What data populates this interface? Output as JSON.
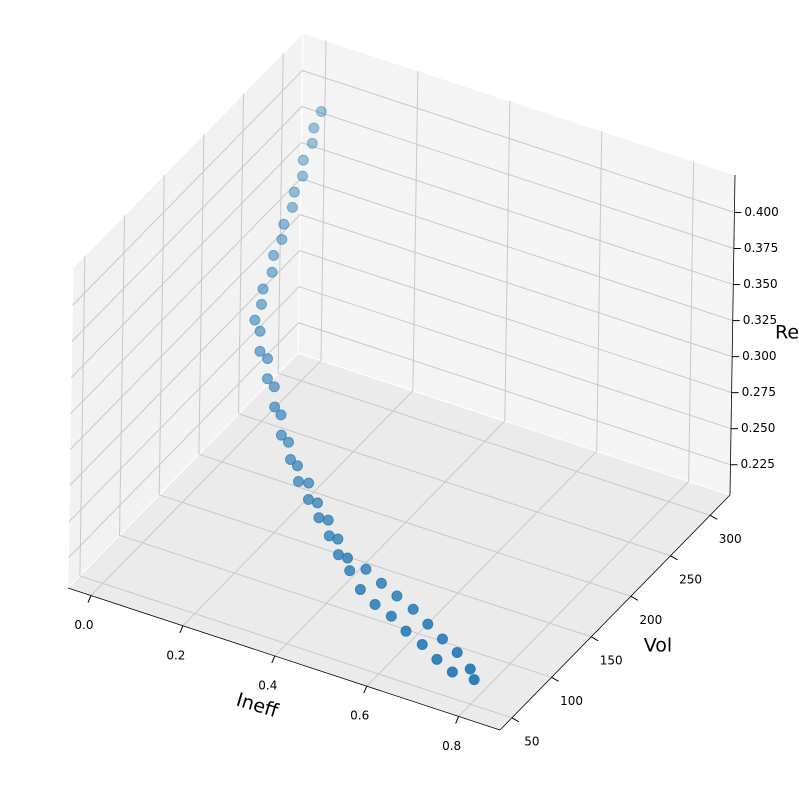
{
  "chart_data": {
    "type": "scatter3d",
    "xlabel": "Ineff",
    "ylabel": "Vol",
    "zlabel": "Ret",
    "color": "#1f77b4",
    "grid": true,
    "xlim": [
      -0.05,
      0.89
    ],
    "ylim": [
      35,
      325
    ],
    "zlim": [
      0.204,
      0.426
    ],
    "xticks": [
      {
        "value": 0,
        "label": "0.0"
      },
      0.2,
      0.4,
      0.6,
      0.8
    ],
    "yticks": [
      50,
      100,
      150,
      200,
      250,
      300
    ],
    "zticks": [
      0.225,
      {
        "value": 0.25,
        "label": "0.250"
      },
      0.275,
      {
        "value": 0.3,
        "label": "0.300"
      },
      0.325,
      {
        "value": 0.35,
        "label": "0.350"
      },
      0.375,
      {
        "value": 0.4,
        "label": "0.400"
      }
    ],
    "x": [
      0.07,
      0.073,
      0.077,
      0.08,
      0.084,
      0.087,
      0.09,
      0.094,
      0.097,
      0.1,
      0.104,
      0.107,
      0.111,
      0.114,
      0.129,
      0.143,
      0.158,
      0.172,
      0.187,
      0.202,
      0.216,
      0.231,
      0.245,
      0.26,
      0.277,
      0.295,
      0.312,
      0.329,
      0.347,
      0.364,
      0.381,
      0.399,
      0.416,
      0.433,
      0.451,
      0.468,
      0.488,
      0.507,
      0.527,
      0.546,
      0.566,
      0.585,
      0.605,
      0.624,
      0.644,
      0.663,
      0.683,
      0.702,
      0.722,
      0.741,
      0.761,
      0.78
    ],
    "y": [
      279,
      268,
      264,
      251,
      248,
      236,
      232,
      219,
      215,
      203,
      199,
      186,
      182,
      172,
      170,
      162,
      163,
      155,
      155,
      147,
      147,
      139,
      140,
      134,
      133,
      124,
      127,
      117,
      118,
      110,
      112,
      103,
      104,
      95,
      96,
      89,
      98,
      80,
      95,
      76,
      92,
      74,
      90,
      70,
      86,
      68,
      82,
      64,
      78,
      61,
      72,
      66
    ],
    "z": [
      0.41,
      0.405,
      0.397,
      0.393,
      0.384,
      0.38,
      0.372,
      0.368,
      0.36,
      0.356,
      0.347,
      0.343,
      0.335,
      0.33,
      0.325,
      0.317,
      0.313,
      0.305,
      0.301,
      0.293,
      0.289,
      0.281,
      0.277,
      0.27,
      0.268,
      0.264,
      0.263,
      0.259,
      0.258,
      0.254,
      0.253,
      0.249,
      0.248,
      0.244,
      0.243,
      0.24,
      0.238,
      0.236,
      0.234,
      0.232,
      0.231,
      0.229,
      0.227,
      0.225,
      0.223,
      0.221,
      0.219,
      0.217,
      0.216,
      0.214,
      0.212,
      0.21
    ]
  }
}
